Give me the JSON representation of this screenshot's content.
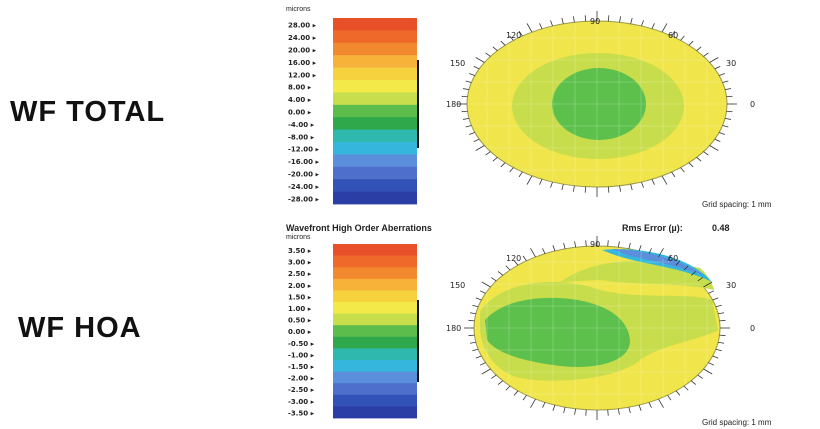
{
  "panels": [
    {
      "row_label": "WF TOTAL",
      "unit": "microns",
      "title": "",
      "rms_label": "",
      "rms_value": "",
      "scale_ticks": [
        "28.00",
        "24.00",
        "20.00",
        "16.00",
        "12.00",
        "8.00",
        "4.00",
        "0.00",
        "-4.00",
        "-8.00",
        "-12.00",
        "-16.00",
        "-20.00",
        "-24.00",
        "-28.00"
      ],
      "colors": [
        "#e8502a",
        "#ef6a2a",
        "#f2892e",
        "#f7b23a",
        "#f6d23f",
        "#f3ea4a",
        "#c8de4c",
        "#5cbd4d",
        "#2ea84a",
        "#2fb8ae",
        "#35b7dd",
        "#5b8fdb",
        "#4f6fcc",
        "#3352b8",
        "#2b3ea6"
      ],
      "angles": [
        "120",
        "90",
        "60",
        "150",
        "30",
        "180",
        "0"
      ],
      "grid_spacing": "Grid spacing: 1 mm"
    },
    {
      "row_label": "WF HOA",
      "unit": "microns",
      "title": "Wavefront High Order Aberrations",
      "rms_label": "Rms Error (µ):",
      "rms_value": "0.48",
      "scale_ticks": [
        "3.50",
        "3.00",
        "2.50",
        "2.00",
        "1.50",
        "1.00",
        "0.50",
        "0.00",
        "-0.50",
        "-1.00",
        "-1.50",
        "-2.00",
        "-2.50",
        "-3.00",
        "-3.50"
      ],
      "colors": [
        "#e8502a",
        "#ef6a2a",
        "#f2892e",
        "#f7b23a",
        "#f6d23f",
        "#f3ea4a",
        "#c8de4c",
        "#5cbd4d",
        "#2ea84a",
        "#2fb8ae",
        "#35b7dd",
        "#5b8fdb",
        "#4f6fcc",
        "#3352b8",
        "#2b3ea6"
      ],
      "angles": [
        "120",
        "90",
        "60",
        "150",
        "30",
        "180",
        "0"
      ],
      "grid_spacing": "Grid spacing: 1 mm"
    }
  ]
}
